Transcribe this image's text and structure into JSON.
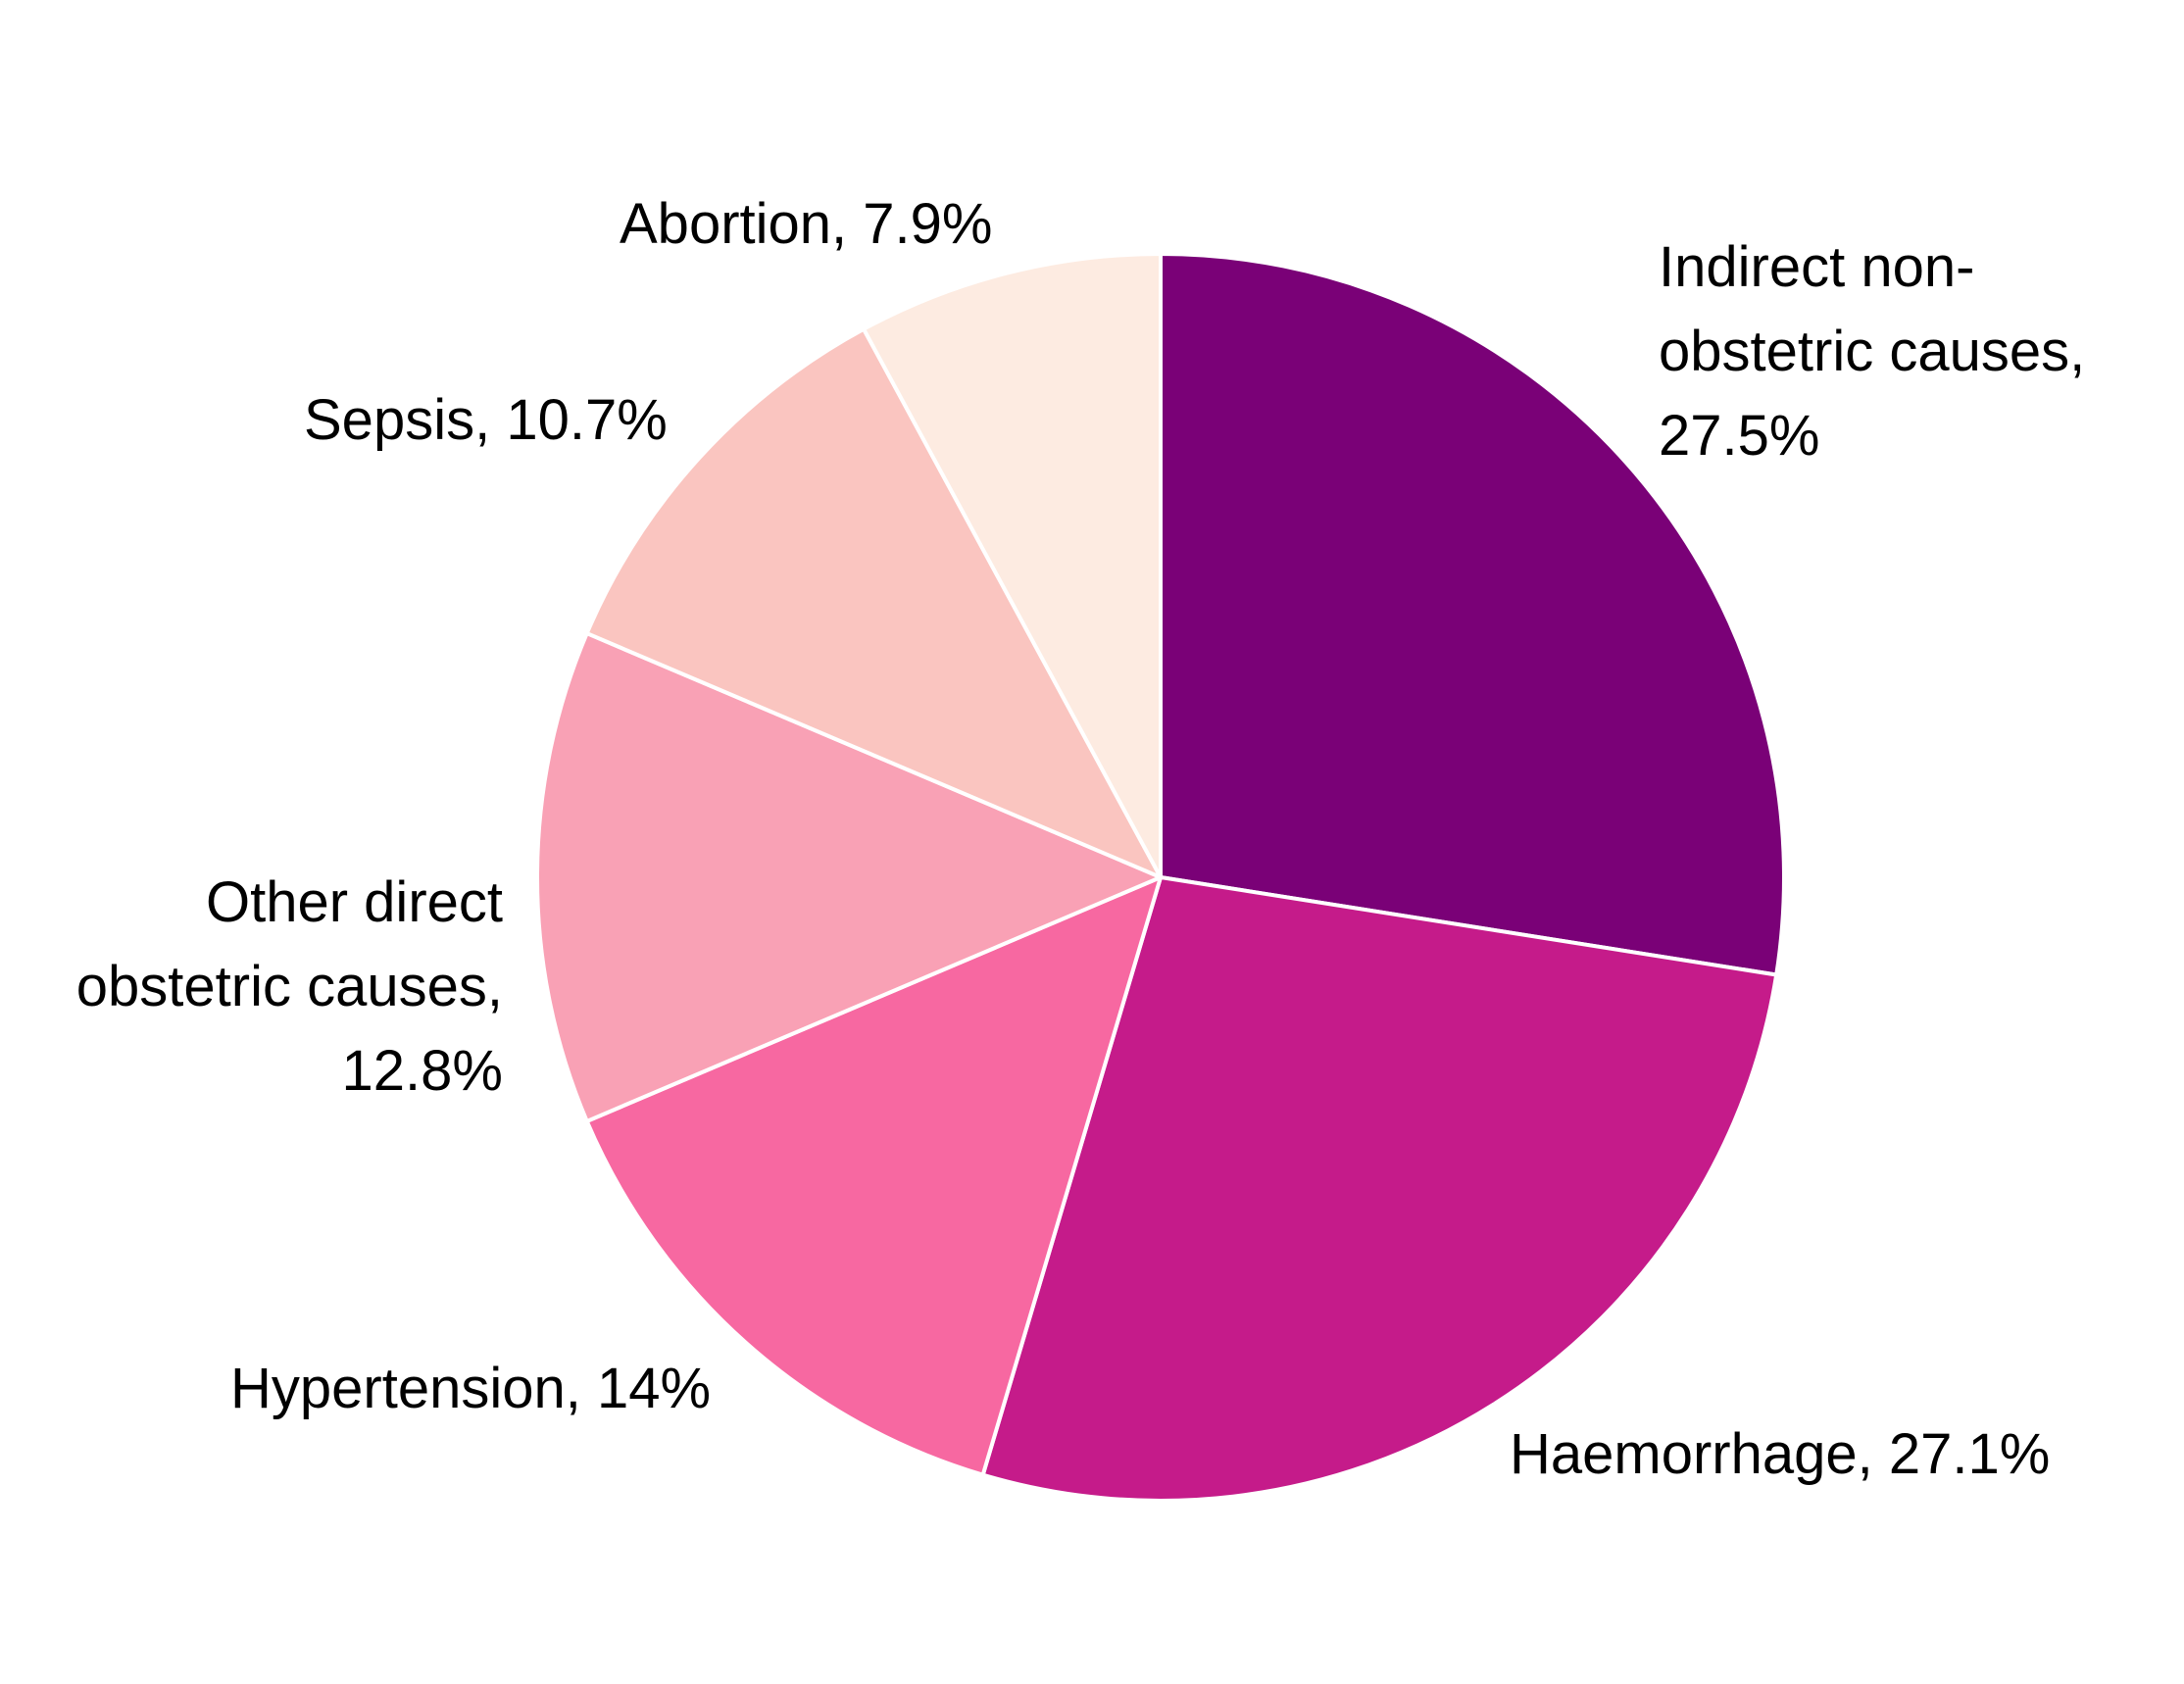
{
  "chart_data": {
    "type": "pie",
    "title": "",
    "start": "12 o'clock",
    "direction": "clockwise",
    "slices": [
      {
        "name": "Indirect non-obstetric causes",
        "value": 27.5,
        "color": "#7a0177",
        "label_lines": [
          "Indirect non-",
          "obstetric causes,",
          "27.5%"
        ]
      },
      {
        "name": "Haemorrhage",
        "value": 27.1,
        "color": "#c51b8a",
        "label_lines": [
          "Haemorrhage, 27.1%"
        ]
      },
      {
        "name": "Hypertension",
        "value": 14,
        "color": "#f768a1",
        "label_lines": [
          "Hypertension, 14%"
        ]
      },
      {
        "name": "Other direct obstetric causes",
        "value": 12.8,
        "color": "#f9a1b5",
        "label_lines": [
          "Other direct",
          "obstetric causes,",
          "12.8%"
        ]
      },
      {
        "name": "Sepsis",
        "value": 10.7,
        "color": "#fac5c0",
        "label_lines": [
          "Sepsis, 10.7%"
        ]
      },
      {
        "name": "Abortion",
        "value": 7.9,
        "color": "#fdebe1",
        "label_lines": [
          "Abortion, 7.9%"
        ]
      }
    ]
  }
}
